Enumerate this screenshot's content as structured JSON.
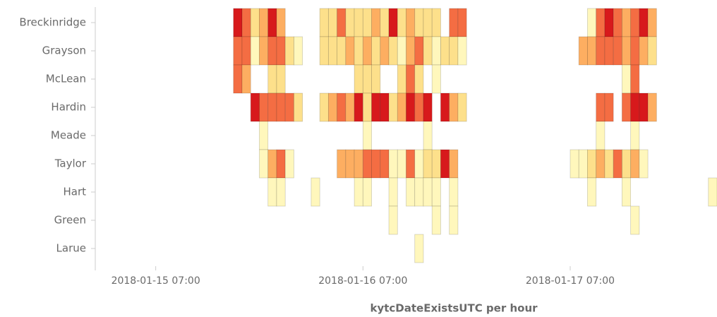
{
  "chart_data": {
    "type": "heatmap",
    "x_label": "kytcDateExistsUTC per hour",
    "xlim": [
      "2018-01-15 00:00",
      "2018-01-18 00:00"
    ],
    "xticks": [
      "2018-01-15 07:00",
      "2018-01-16 07:00",
      "2018-01-17 07:00"
    ],
    "colors": [
      "#fff7bc",
      "#fde08b",
      "#fdae61",
      "#f46d43",
      "#d7191c"
    ],
    "series": [
      {
        "name": "Breckinridge",
        "x": [
          "2018-01-15 16:00",
          "2018-01-15 17:00",
          "2018-01-15 18:00",
          "2018-01-15 19:00",
          "2018-01-15 20:00",
          "2018-01-15 21:00",
          "2018-01-16 02:00",
          "2018-01-16 03:00",
          "2018-01-16 04:00",
          "2018-01-16 05:00",
          "2018-01-16 06:00",
          "2018-01-16 07:00",
          "2018-01-16 08:00",
          "2018-01-16 09:00",
          "2018-01-16 10:00",
          "2018-01-16 11:00",
          "2018-01-16 12:00",
          "2018-01-16 13:00",
          "2018-01-16 14:00",
          "2018-01-16 15:00",
          "2018-01-16 17:00",
          "2018-01-16 18:00",
          "2018-01-17 09:00",
          "2018-01-17 10:00",
          "2018-01-17 11:00",
          "2018-01-17 12:00",
          "2018-01-17 13:00",
          "2018-01-17 14:00",
          "2018-01-17 15:00",
          "2018-01-17 16:00"
        ],
        "values": [
          5,
          4,
          2,
          3,
          5,
          3,
          2,
          2,
          4,
          2,
          2,
          2,
          3,
          2,
          5,
          2,
          3,
          2,
          2,
          2,
          4,
          4,
          1,
          4,
          5,
          4,
          3,
          4,
          5,
          3
        ]
      },
      {
        "name": "Grayson",
        "x": [
          "2018-01-15 16:00",
          "2018-01-15 17:00",
          "2018-01-15 18:00",
          "2018-01-15 19:00",
          "2018-01-15 20:00",
          "2018-01-15 21:00",
          "2018-01-15 22:00",
          "2018-01-15 23:00",
          "2018-01-16 02:00",
          "2018-01-16 03:00",
          "2018-01-16 04:00",
          "2018-01-16 05:00",
          "2018-01-16 06:00",
          "2018-01-16 07:00",
          "2018-01-16 08:00",
          "2018-01-16 09:00",
          "2018-01-16 10:00",
          "2018-01-16 11:00",
          "2018-01-16 12:00",
          "2018-01-16 13:00",
          "2018-01-16 14:00",
          "2018-01-16 15:00",
          "2018-01-16 16:00",
          "2018-01-16 17:00",
          "2018-01-16 18:00",
          "2018-01-17 08:00",
          "2018-01-17 09:00",
          "2018-01-17 10:00",
          "2018-01-17 11:00",
          "2018-01-17 12:00",
          "2018-01-17 13:00",
          "2018-01-17 14:00",
          "2018-01-17 15:00",
          "2018-01-17 16:00"
        ],
        "values": [
          4,
          4,
          1,
          3,
          4,
          4,
          2,
          1,
          2,
          2,
          2,
          3,
          2,
          3,
          2,
          3,
          2,
          1,
          3,
          4,
          2,
          1,
          2,
          2,
          1,
          3,
          3,
          4,
          4,
          4,
          3,
          4,
          3,
          2
        ]
      },
      {
        "name": "McLean",
        "x": [
          "2018-01-15 16:00",
          "2018-01-15 17:00",
          "2018-01-15 20:00",
          "2018-01-15 21:00",
          "2018-01-16 06:00",
          "2018-01-16 07:00",
          "2018-01-16 08:00",
          "2018-01-16 11:00",
          "2018-01-16 12:00",
          "2018-01-16 13:00",
          "2018-01-16 15:00",
          "2018-01-17 13:00",
          "2018-01-17 14:00"
        ],
        "values": [
          4,
          3,
          2,
          2,
          2,
          2,
          2,
          2,
          4,
          2,
          1,
          1,
          4
        ]
      },
      {
        "name": "Hardin",
        "x": [
          "2018-01-15 18:00",
          "2018-01-15 19:00",
          "2018-01-15 20:00",
          "2018-01-15 21:00",
          "2018-01-15 22:00",
          "2018-01-15 23:00",
          "2018-01-16 02:00",
          "2018-01-16 03:00",
          "2018-01-16 04:00",
          "2018-01-16 05:00",
          "2018-01-16 06:00",
          "2018-01-16 07:00",
          "2018-01-16 08:00",
          "2018-01-16 09:00",
          "2018-01-16 10:00",
          "2018-01-16 11:00",
          "2018-01-16 12:00",
          "2018-01-16 13:00",
          "2018-01-16 14:00",
          "2018-01-16 16:00",
          "2018-01-16 17:00",
          "2018-01-16 18:00",
          "2018-01-17 10:00",
          "2018-01-17 11:00",
          "2018-01-17 13:00",
          "2018-01-17 14:00",
          "2018-01-17 15:00",
          "2018-01-17 16:00"
        ],
        "values": [
          5,
          4,
          4,
          4,
          4,
          2,
          2,
          3,
          4,
          3,
          5,
          2,
          5,
          5,
          2,
          3,
          5,
          4,
          5,
          5,
          3,
          2,
          4,
          4,
          4,
          5,
          5,
          3
        ]
      },
      {
        "name": "Meade",
        "x": [
          "2018-01-15 19:00",
          "2018-01-16 07:00",
          "2018-01-16 14:00",
          "2018-01-17 10:00",
          "2018-01-17 14:00"
        ],
        "values": [
          1,
          1,
          1,
          1,
          1
        ]
      },
      {
        "name": "Taylor",
        "x": [
          "2018-01-15 19:00",
          "2018-01-15 20:00",
          "2018-01-15 21:00",
          "2018-01-15 22:00",
          "2018-01-16 04:00",
          "2018-01-16 05:00",
          "2018-01-16 06:00",
          "2018-01-16 07:00",
          "2018-01-16 08:00",
          "2018-01-16 09:00",
          "2018-01-16 10:00",
          "2018-01-16 11:00",
          "2018-01-16 12:00",
          "2018-01-16 13:00",
          "2018-01-16 14:00",
          "2018-01-16 15:00",
          "2018-01-16 16:00",
          "2018-01-16 17:00",
          "2018-01-17 07:00",
          "2018-01-17 08:00",
          "2018-01-17 09:00",
          "2018-01-17 10:00",
          "2018-01-17 11:00",
          "2018-01-17 12:00",
          "2018-01-17 13:00",
          "2018-01-17 14:00",
          "2018-01-17 15:00"
        ],
        "values": [
          1,
          3,
          4,
          1,
          3,
          3,
          3,
          4,
          4,
          4,
          1,
          1,
          4,
          1,
          2,
          2,
          5,
          3,
          1,
          1,
          2,
          3,
          2,
          4,
          2,
          3,
          1
        ]
      },
      {
        "name": "Hart",
        "x": [
          "2018-01-15 20:00",
          "2018-01-15 21:00",
          "2018-01-16 01:00",
          "2018-01-16 06:00",
          "2018-01-16 07:00",
          "2018-01-16 10:00",
          "2018-01-16 12:00",
          "2018-01-16 13:00",
          "2018-01-16 14:00",
          "2018-01-16 15:00",
          "2018-01-16 17:00",
          "2018-01-17 09:00",
          "2018-01-17 13:00",
          "2018-01-17 23:00"
        ],
        "values": [
          1,
          1,
          1,
          1,
          1,
          1,
          1,
          1,
          1,
          1,
          1,
          1,
          1,
          1
        ]
      },
      {
        "name": "Green",
        "x": [
          "2018-01-16 10:00",
          "2018-01-16 15:00",
          "2018-01-16 17:00",
          "2018-01-17 14:00"
        ],
        "values": [
          1,
          1,
          1,
          1
        ]
      },
      {
        "name": "Larue",
        "x": [
          "2018-01-16 13:00"
        ],
        "values": [
          1
        ]
      }
    ]
  }
}
